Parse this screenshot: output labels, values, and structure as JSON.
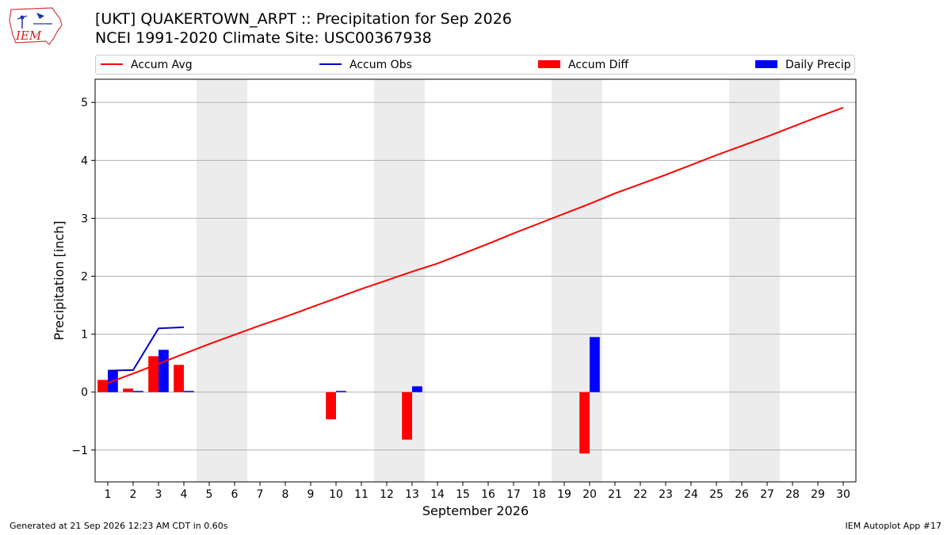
{
  "header": {
    "title_line1": "[UKT] QUAKERTOWN_ARPT :: Precipitation for Sep 2026",
    "title_line2": "NCEI 1991-2020 Climate Site: USC00367938"
  },
  "logo": {
    "text": "IEM"
  },
  "legend": {
    "accum_avg": "Accum Avg",
    "accum_obs": "Accum Obs",
    "accum_diff": "Accum Diff",
    "daily_precip": "Daily Precip"
  },
  "footer": {
    "generated": "Generated at 21 Sep 2026 12:23 AM CDT in 0.60s",
    "app": "IEM Autoplot App #17"
  },
  "colors": {
    "avg": "#ff0000",
    "obs": "#0000cc",
    "diff": "#ff0000",
    "daily": "#0000ff",
    "weekend": "#ececec",
    "grid": "#b0b0b0"
  },
  "chart_data": {
    "type": "bar",
    "xlabel": "September 2026",
    "ylabel": "Precipitation [inch]",
    "xlim": [
      0.5,
      30.5
    ],
    "ylim": [
      -1.55,
      5.4
    ],
    "yticks": [
      -1,
      0,
      1,
      2,
      3,
      4,
      5
    ],
    "ytick_labels": [
      "−1",
      "0",
      "1",
      "2",
      "3",
      "4",
      "5"
    ],
    "xticks": [
      1,
      2,
      3,
      4,
      5,
      6,
      7,
      8,
      9,
      10,
      11,
      12,
      13,
      14,
      15,
      16,
      17,
      18,
      19,
      20,
      21,
      22,
      23,
      24,
      25,
      26,
      27,
      28,
      29,
      30
    ],
    "grid": "horizontal",
    "legend_position": "top",
    "weekend_days": [
      [
        5,
        6
      ],
      [
        12,
        13
      ],
      [
        19,
        20
      ],
      [
        26,
        27
      ]
    ],
    "series": [
      {
        "name": "Accum Avg",
        "kind": "line",
        "x": [
          1,
          2,
          3,
          4,
          5,
          6,
          7,
          8,
          9,
          10,
          11,
          12,
          13,
          14,
          15,
          16,
          17,
          18,
          19,
          20,
          21,
          22,
          23,
          24,
          25,
          26,
          27,
          28,
          29,
          30
        ],
        "values": [
          0.16,
          0.32,
          0.49,
          0.66,
          0.83,
          0.99,
          1.15,
          1.3,
          1.46,
          1.62,
          1.78,
          1.93,
          2.08,
          2.22,
          2.39,
          2.56,
          2.74,
          2.91,
          3.08,
          3.25,
          3.43,
          3.59,
          3.75,
          3.92,
          4.09,
          4.25,
          4.41,
          4.58,
          4.75,
          4.91
        ]
      },
      {
        "name": "Accum Obs",
        "kind": "line",
        "x": [
          1,
          2,
          3,
          4
        ],
        "values": [
          0.37,
          0.38,
          1.1,
          1.12
        ]
      },
      {
        "name": "Accum Diff",
        "kind": "bar",
        "x": [
          1,
          2,
          3,
          4,
          10,
          13,
          20
        ],
        "values": [
          0.21,
          0.06,
          0.62,
          0.47,
          -0.47,
          -0.82,
          -1.06
        ]
      },
      {
        "name": "Daily Precip",
        "kind": "bar",
        "x": [
          1,
          2,
          3,
          4,
          10,
          13,
          20
        ],
        "values": [
          0.37,
          0.02,
          0.73,
          0.02,
          0.02,
          0.1,
          0.95
        ]
      }
    ]
  }
}
